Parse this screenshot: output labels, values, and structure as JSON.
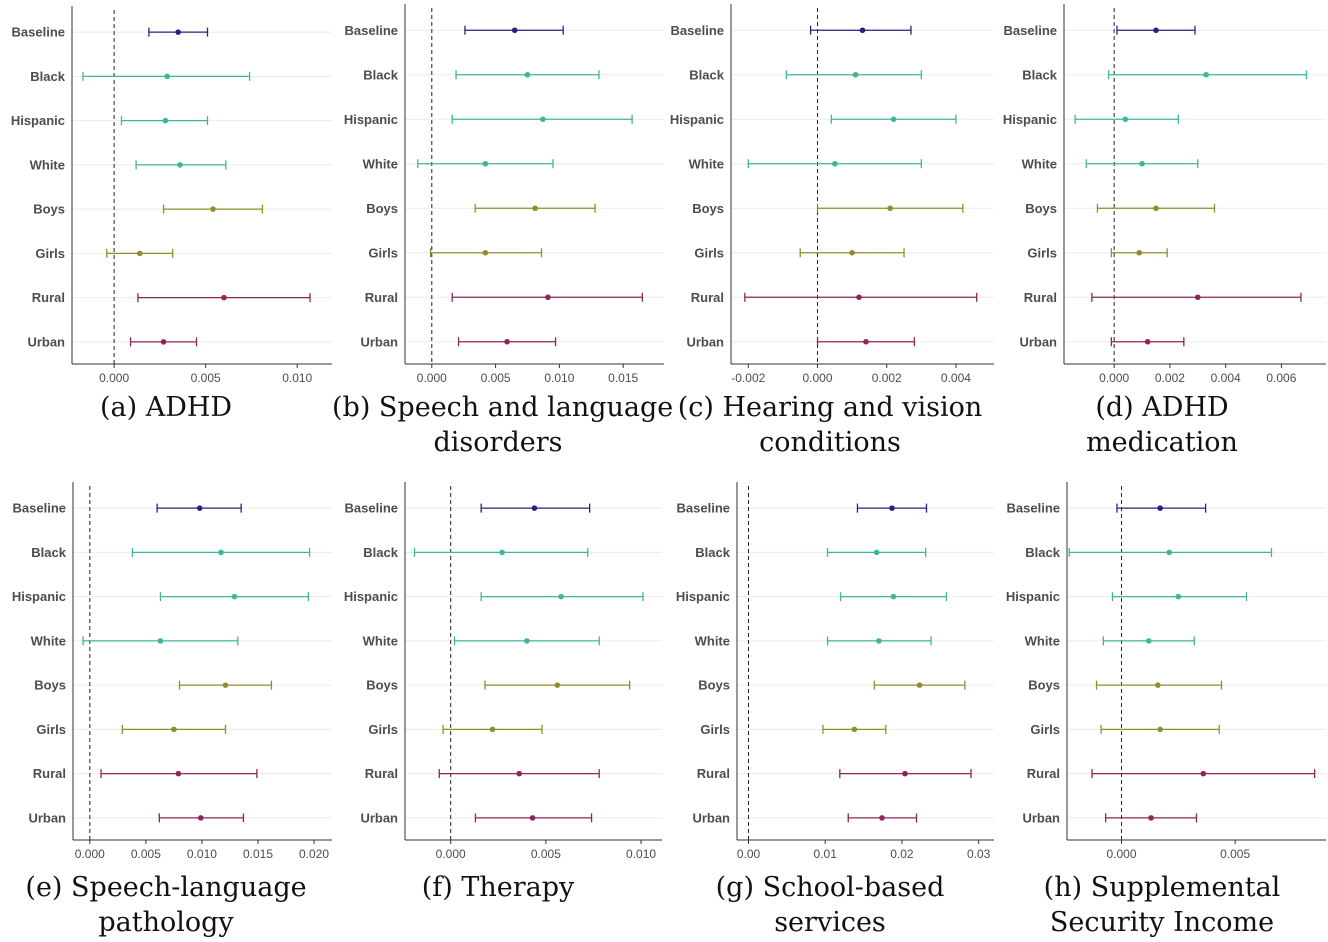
{
  "colors": {
    "baseline": "#2e1f7f",
    "race": "#3fb59a",
    "sex": "#8f8f2a",
    "geography": "#8c2559",
    "gridline": "#ebebeb",
    "axis": "#333333",
    "zero_line": "#222222"
  },
  "chart_data": [
    {
      "type": "errorbar",
      "caption": [
        "(a) ADHD"
      ],
      "categories": [
        "Baseline",
        "Black",
        "Hispanic",
        "White",
        "Boys",
        "Girls",
        "Rural",
        "Urban"
      ],
      "groups": [
        "baseline",
        "race",
        "race",
        "race",
        "sex",
        "sex",
        "geography",
        "geography"
      ],
      "estimate": [
        0.0035,
        0.0029,
        0.0028,
        0.0036,
        0.0054,
        0.0014,
        0.006,
        0.0027
      ],
      "lower": [
        0.0019,
        -0.0017,
        0.0004,
        0.0012,
        0.0027,
        -0.0004,
        0.0013,
        0.0009
      ],
      "upper": [
        0.0051,
        0.0074,
        0.0051,
        0.0061,
        0.0081,
        0.0032,
        0.0107,
        0.0045
      ],
      "xlim": [
        -0.0023,
        0.0119
      ],
      "ticks": [
        0.0,
        0.005,
        0.01
      ],
      "tick_labels": [
        "0.000",
        "0.005",
        "0.010"
      ],
      "reference_line": 0
    },
    {
      "type": "errorbar",
      "caption": [
        "(b) Speech and language",
        "disorders"
      ],
      "categories": [
        "Baseline",
        "Black",
        "Hispanic",
        "White",
        "Boys",
        "Girls",
        "Rural",
        "Urban"
      ],
      "groups": [
        "baseline",
        "race",
        "race",
        "race",
        "sex",
        "sex",
        "geography",
        "geography"
      ],
      "estimate": [
        0.0065,
        0.0075,
        0.0087,
        0.0042,
        0.0081,
        0.0042,
        0.0091,
        0.0059
      ],
      "lower": [
        0.0026,
        0.0019,
        0.0016,
        -0.0011,
        0.0034,
        -0.0001,
        0.0016,
        0.0021
      ],
      "upper": [
        0.0103,
        0.0131,
        0.0157,
        0.0095,
        0.0128,
        0.0086,
        0.0165,
        0.0097
      ],
      "xlim": [
        -0.0021,
        0.0182
      ],
      "ticks": [
        0.0,
        0.005,
        0.01,
        0.015
      ],
      "tick_labels": [
        "0.000",
        "0.005",
        "0.010",
        "0.015"
      ],
      "reference_line": 0
    },
    {
      "type": "errorbar",
      "caption": [
        "(c) Hearing and vision",
        "conditions"
      ],
      "categories": [
        "Baseline",
        "Black",
        "Hispanic",
        "White",
        "Boys",
        "Girls",
        "Rural",
        "Urban"
      ],
      "groups": [
        "baseline",
        "race",
        "race",
        "race",
        "sex",
        "sex",
        "geography",
        "geography"
      ],
      "estimate": [
        0.0013,
        0.0011,
        0.0022,
        0.0005,
        0.0021,
        0.001,
        0.0012,
        0.0014
      ],
      "lower": [
        -0.0002,
        -0.0009,
        0.0004,
        -0.002,
        0.0,
        -0.0005,
        -0.0021,
        0.0
      ],
      "upper": [
        0.0027,
        0.003,
        0.004,
        0.003,
        0.0042,
        0.0025,
        0.0046,
        0.0028
      ],
      "xlim": [
        -0.0025,
        0.0051
      ],
      "ticks": [
        -0.002,
        0.0,
        0.002,
        0.004
      ],
      "tick_labels": [
        "-0.002",
        "0.000",
        "0.002",
        "0.004"
      ],
      "reference_line": 0
    },
    {
      "type": "errorbar",
      "caption": [
        "(d) ADHD",
        "medication"
      ],
      "categories": [
        "Baseline",
        "Black",
        "Hispanic",
        "White",
        "Boys",
        "Girls",
        "Rural",
        "Urban"
      ],
      "groups": [
        "baseline",
        "race",
        "race",
        "race",
        "sex",
        "sex",
        "geography",
        "geography"
      ],
      "estimate": [
        0.0015,
        0.0033,
        0.0004,
        0.001,
        0.0015,
        0.0009,
        0.003,
        0.0012
      ],
      "lower": [
        0.0001,
        -0.0002,
        -0.0014,
        -0.001,
        -0.0006,
        -0.0001,
        -0.0008,
        -0.0001
      ],
      "upper": [
        0.0029,
        0.0069,
        0.0023,
        0.003,
        0.0036,
        0.0019,
        0.0067,
        0.0025
      ],
      "xlim": [
        -0.0018,
        0.0076
      ],
      "ticks": [
        0.0,
        0.002,
        0.004,
        0.006
      ],
      "tick_labels": [
        "0.000",
        "0.002",
        "0.004",
        "0.006"
      ],
      "reference_line": 0
    },
    {
      "type": "errorbar",
      "caption": [
        "(e) Speech-language",
        "pathology"
      ],
      "categories": [
        "Baseline",
        "Black",
        "Hispanic",
        "White",
        "Boys",
        "Girls",
        "Rural",
        "Urban"
      ],
      "groups": [
        "baseline",
        "race",
        "race",
        "race",
        "sex",
        "sex",
        "geography",
        "geography"
      ],
      "estimate": [
        0.0098,
        0.0117,
        0.0129,
        0.0063,
        0.0121,
        0.0075,
        0.0079,
        0.0099
      ],
      "lower": [
        0.006,
        0.0038,
        0.0063,
        -0.0006,
        0.008,
        0.0029,
        0.001,
        0.0062
      ],
      "upper": [
        0.0135,
        0.0196,
        0.0195,
        0.0132,
        0.0162,
        0.0121,
        0.0149,
        0.0137
      ],
      "xlim": [
        -0.0015,
        0.0216
      ],
      "ticks": [
        0.0,
        0.005,
        0.01,
        0.015,
        0.02
      ],
      "tick_labels": [
        "0.000",
        "0.005",
        "0.010",
        "0.015",
        "0.020"
      ],
      "reference_line": 0
    },
    {
      "type": "errorbar",
      "caption": [
        "(f) Therapy"
      ],
      "categories": [
        "Baseline",
        "Black",
        "Hispanic",
        "White",
        "Boys",
        "Girls",
        "Rural",
        "Urban"
      ],
      "groups": [
        "baseline",
        "race",
        "race",
        "race",
        "sex",
        "sex",
        "geography",
        "geography"
      ],
      "estimate": [
        0.0044,
        0.0027,
        0.0058,
        0.004,
        0.0056,
        0.0022,
        0.0036,
        0.0043
      ],
      "lower": [
        0.0016,
        -0.0019,
        0.0016,
        0.0002,
        0.0018,
        -0.0004,
        -0.0006,
        0.0013
      ],
      "upper": [
        0.0073,
        0.0072,
        0.0101,
        0.0078,
        0.0094,
        0.0048,
        0.0078,
        0.0074
      ],
      "xlim": [
        -0.0024,
        0.0111
      ],
      "ticks": [
        0.0,
        0.005,
        0.01
      ],
      "tick_labels": [
        "0.000",
        "0.005",
        "0.010"
      ],
      "reference_line": 0
    },
    {
      "type": "errorbar",
      "caption": [
        "(g) School-based",
        "services"
      ],
      "categories": [
        "Baseline",
        "Black",
        "Hispanic",
        "White",
        "Boys",
        "Girls",
        "Rural",
        "Urban"
      ],
      "groups": [
        "baseline",
        "race",
        "race",
        "race",
        "sex",
        "sex",
        "geography",
        "geography"
      ],
      "estimate": [
        0.0187,
        0.0167,
        0.0189,
        0.017,
        0.0223,
        0.0138,
        0.0204,
        0.0174
      ],
      "lower": [
        0.0142,
        0.0103,
        0.012,
        0.0103,
        0.0164,
        0.0097,
        0.0119,
        0.013
      ],
      "upper": [
        0.0232,
        0.0231,
        0.0258,
        0.0238,
        0.0282,
        0.0179,
        0.029,
        0.0219
      ],
      "xlim": [
        -0.0015,
        0.032
      ],
      "ticks": [
        0.0,
        0.01,
        0.02,
        0.03
      ],
      "tick_labels": [
        "0.00",
        "0.01",
        "0.02",
        "0.03"
      ],
      "reference_line": 0
    },
    {
      "type": "errorbar",
      "caption": [
        "(h) Supplemental",
        "Security Income"
      ],
      "categories": [
        "Baseline",
        "Black",
        "Hispanic",
        "White",
        "Boys",
        "Girls",
        "Rural",
        "Urban"
      ],
      "groups": [
        "baseline",
        "race",
        "race",
        "race",
        "sex",
        "sex",
        "geography",
        "geography"
      ],
      "estimate": [
        0.0017,
        0.0021,
        0.0025,
        0.0012,
        0.0016,
        0.0017,
        0.0036,
        0.0013
      ],
      "lower": [
        -0.0002,
        -0.0023,
        -0.0004,
        -0.0008,
        -0.0011,
        -0.0009,
        -0.0013,
        -0.0007
      ],
      "upper": [
        0.0037,
        0.0066,
        0.0055,
        0.0032,
        0.0044,
        0.0043,
        0.0085,
        0.0033
      ],
      "xlim": [
        -0.0024,
        0.009
      ],
      "ticks": [
        0.0,
        0.005
      ],
      "tick_labels": [
        "0.000",
        "0.005"
      ],
      "reference_line": 0
    }
  ]
}
